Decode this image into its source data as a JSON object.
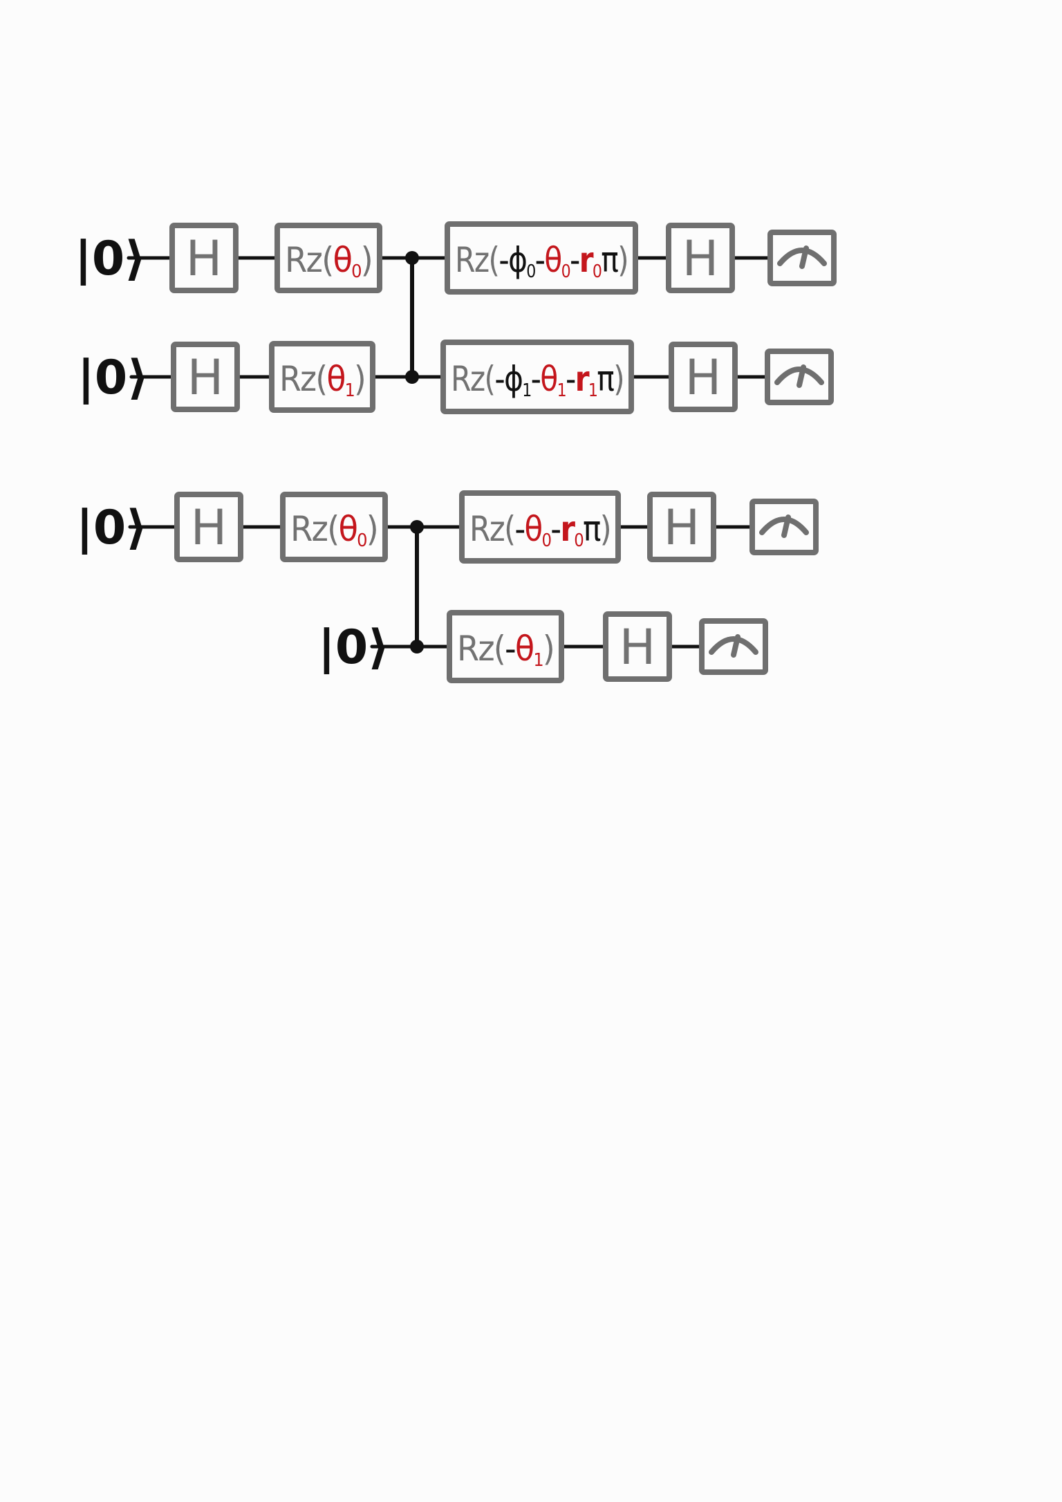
{
  "colors": {
    "wire": "#111111",
    "box": "#6f6f6f",
    "label": "#727272",
    "param": "#c4161c",
    "plain": "#111111"
  },
  "icons": {
    "measurement": "meter-icon"
  },
  "circuits": [
    {
      "id": "circuit-1",
      "qubits": [
        {
          "init": "|0⟩",
          "gates": [
            {
              "type": "H",
              "label": "H"
            },
            {
              "type": "Rz",
              "parts": [
                {
                  "text": "Rz(",
                  "style": "label"
                },
                {
                  "text": "θ",
                  "style": "param"
                },
                {
                  "text": "0",
                  "style": "param",
                  "sub": true
                },
                {
                  "text": ")",
                  "style": "label"
                }
              ]
            },
            {
              "type": "control"
            },
            {
              "type": "Rz",
              "parts": [
                {
                  "text": "Rz(",
                  "style": "label"
                },
                {
                  "text": "-",
                  "style": "plain"
                },
                {
                  "text": "ϕ",
                  "style": "plain"
                },
                {
                  "text": "0",
                  "style": "plain",
                  "sub": true
                },
                {
                  "text": "-",
                  "style": "plain"
                },
                {
                  "text": "θ",
                  "style": "param"
                },
                {
                  "text": "0",
                  "style": "param",
                  "sub": true
                },
                {
                  "text": "-",
                  "style": "plain"
                },
                {
                  "text": "r",
                  "style": "param"
                },
                {
                  "text": "0",
                  "style": "param",
                  "sub": true
                },
                {
                  "text": "π",
                  "style": "plain"
                },
                {
                  "text": ")",
                  "style": "label"
                }
              ]
            },
            {
              "type": "H",
              "label": "H"
            },
            {
              "type": "measure"
            }
          ]
        },
        {
          "init": "|0⟩",
          "gates": [
            {
              "type": "H",
              "label": "H"
            },
            {
              "type": "Rz",
              "parts": [
                {
                  "text": "Rz(",
                  "style": "label"
                },
                {
                  "text": "θ",
                  "style": "param"
                },
                {
                  "text": "1",
                  "style": "param",
                  "sub": true
                },
                {
                  "text": ")",
                  "style": "label"
                }
              ]
            },
            {
              "type": "control"
            },
            {
              "type": "Rz",
              "parts": [
                {
                  "text": "Rz(",
                  "style": "label"
                },
                {
                  "text": "-",
                  "style": "plain"
                },
                {
                  "text": "ϕ",
                  "style": "plain"
                },
                {
                  "text": "1",
                  "style": "plain",
                  "sub": true
                },
                {
                  "text": "-",
                  "style": "plain"
                },
                {
                  "text": "θ",
                  "style": "param"
                },
                {
                  "text": "1",
                  "style": "param",
                  "sub": true
                },
                {
                  "text": "-",
                  "style": "plain"
                },
                {
                  "text": "r",
                  "style": "param"
                },
                {
                  "text": "1",
                  "style": "param",
                  "sub": true
                },
                {
                  "text": "π",
                  "style": "plain"
                },
                {
                  "text": ")",
                  "style": "label"
                }
              ]
            },
            {
              "type": "H",
              "label": "H"
            },
            {
              "type": "measure"
            }
          ]
        }
      ]
    },
    {
      "id": "circuit-2",
      "qubits": [
        {
          "init": "|0⟩",
          "gates": [
            {
              "type": "H",
              "label": "H"
            },
            {
              "type": "Rz",
              "parts": [
                {
                  "text": "Rz(",
                  "style": "label"
                },
                {
                  "text": "θ",
                  "style": "param"
                },
                {
                  "text": "0",
                  "style": "param",
                  "sub": true
                },
                {
                  "text": ")",
                  "style": "label"
                }
              ]
            },
            {
              "type": "control"
            },
            {
              "type": "Rz",
              "parts": [
                {
                  "text": "Rz(",
                  "style": "label"
                },
                {
                  "text": "-",
                  "style": "plain"
                },
                {
                  "text": "θ",
                  "style": "param"
                },
                {
                  "text": "0",
                  "style": "param",
                  "sub": true
                },
                {
                  "text": "-",
                  "style": "plain"
                },
                {
                  "text": "r",
                  "style": "param"
                },
                {
                  "text": "0",
                  "style": "param",
                  "sub": true
                },
                {
                  "text": "π",
                  "style": "plain"
                },
                {
                  "text": ")",
                  "style": "label"
                }
              ]
            },
            {
              "type": "H",
              "label": "H"
            },
            {
              "type": "measure"
            }
          ]
        },
        {
          "init": "|0⟩",
          "gates": [
            {
              "type": "control"
            },
            {
              "type": "Rz",
              "parts": [
                {
                  "text": "Rz(",
                  "style": "label"
                },
                {
                  "text": "-",
                  "style": "plain"
                },
                {
                  "text": "θ",
                  "style": "param"
                },
                {
                  "text": "1",
                  "style": "param",
                  "sub": true
                },
                {
                  "text": ")",
                  "style": "label"
                }
              ]
            },
            {
              "type": "H",
              "label": "H"
            },
            {
              "type": "measure"
            }
          ]
        }
      ]
    }
  ]
}
